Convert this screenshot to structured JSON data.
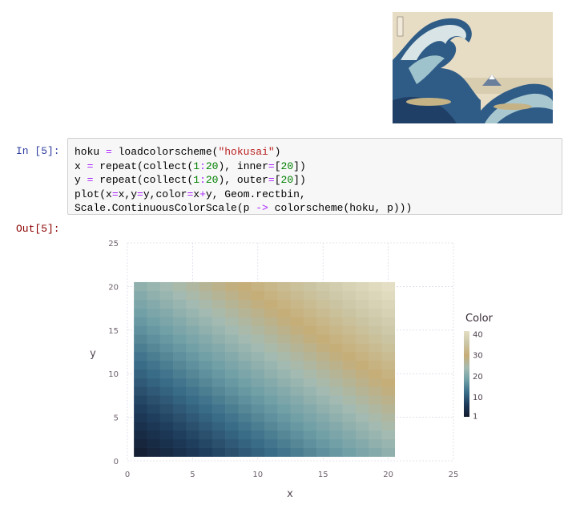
{
  "notebook": {
    "prompt_in": "In [5]:",
    "prompt_out": "Out[5]:",
    "code_lines": [
      "hoku = loadcolorscheme(\"hokusai\")",
      "x = repeat(collect(1:20), inner=[20])",
      "y = repeat(collect(1:20), outer=[20])",
      "plot(x=x,y=y,color=x+y, Geom.rectbin,",
      "Scale.ContinuousColorScale(p -> colorscheme(hoku, p)))"
    ]
  },
  "image_cell": {
    "icon": "great-wave-painting-icon"
  },
  "chart_data": {
    "type": "heatmap",
    "xlabel": "x",
    "ylabel": "y",
    "xlim": [
      0,
      25
    ],
    "ylim": [
      0,
      25
    ],
    "xticks": [
      "0",
      "5",
      "10",
      "15",
      "20",
      "25"
    ],
    "yticks": [
      "0",
      "5",
      "10",
      "15",
      "20",
      "25"
    ],
    "grid": true,
    "x": [
      1,
      2,
      3,
      4,
      5,
      6,
      7,
      8,
      9,
      10,
      11,
      12,
      13,
      14,
      15,
      16,
      17,
      18,
      19,
      20
    ],
    "y": [
      1,
      2,
      3,
      4,
      5,
      6,
      7,
      8,
      9,
      10,
      11,
      12,
      13,
      14,
      15,
      16,
      17,
      18,
      19,
      20
    ],
    "value_formula": "color = x + y",
    "legend": {
      "title": "Color",
      "placement": "right",
      "ticks": [
        "40",
        "30",
        "20",
        "10",
        "1"
      ],
      "range": [
        1,
        40
      ]
    },
    "colors": [
      "#131a2c",
      "#1d3a5a",
      "#3a6d88",
      "#6f9fa6",
      "#a5bbb2",
      "#c6ad77",
      "#cbc6a6",
      "#e4dfc4"
    ]
  }
}
